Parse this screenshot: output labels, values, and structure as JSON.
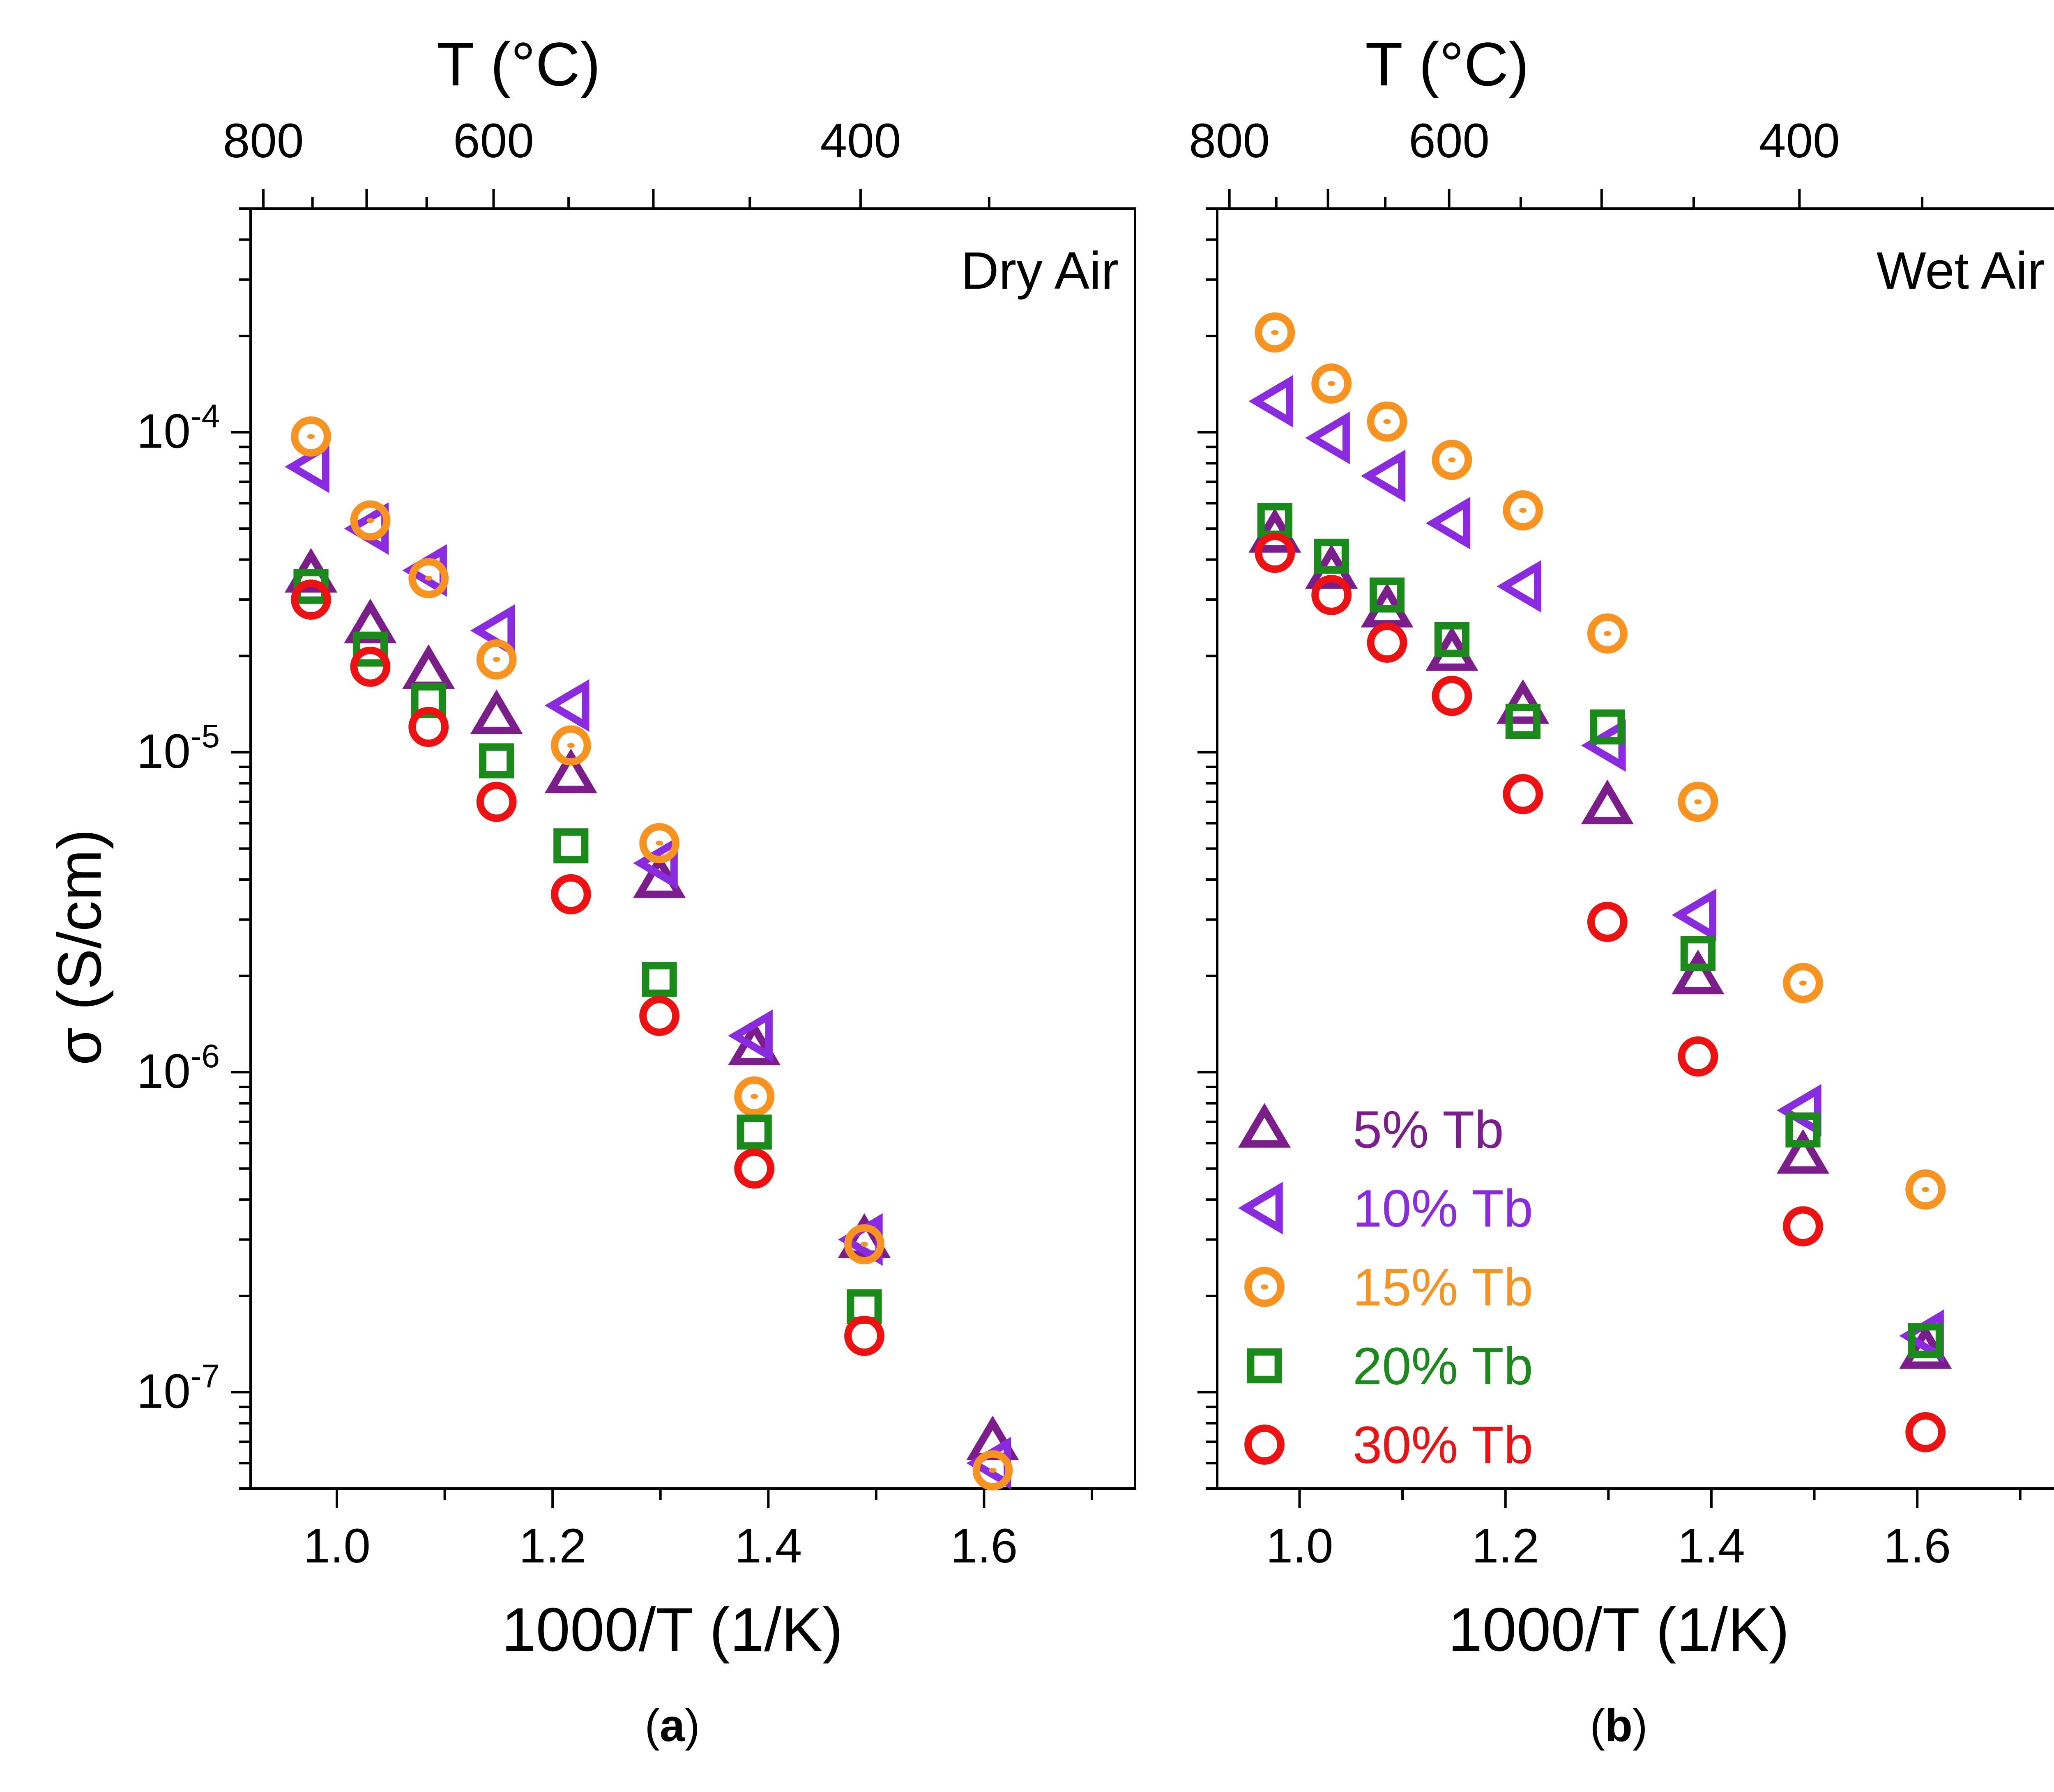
{
  "figure": {
    "colors": {
      "5pct": "#7b1e8c",
      "10pct": "#8a2be2",
      "15pct": "#f7931e",
      "20pct": "#1a8a1a",
      "30pct": "#ee1111"
    }
  },
  "chart_data": [
    {
      "type": "scatter",
      "panel": "(a)",
      "panel_letter": "a",
      "annotation": "Dry Air",
      "xlabel": "1000/T (1/K)",
      "ylabel": "σ (S/cm)",
      "top_xlabel": "T (°C)",
      "xlim": [
        0.92,
        1.74
      ],
      "ylim": [
        5e-08,
        0.0005
      ],
      "yscale": "log",
      "x_ticks": [
        1.0,
        1.2,
        1.4,
        1.6
      ],
      "x_tick_labels": [
        "1.0",
        "1.2",
        "1.4",
        "1.6"
      ],
      "y_ticks": [
        1e-07,
        1e-06,
        1e-05,
        0.0001
      ],
      "y_tick_base": "10",
      "y_tick_exponents": [
        "-7",
        "-6",
        "-5",
        "-4"
      ],
      "top_ticks_celsius": [
        800,
        600,
        400
      ],
      "top_tick_labels": [
        "800",
        "600",
        "400"
      ],
      "series": [
        {
          "name": "5% Tb",
          "marker": "triangle-up",
          "color_key": "5pct",
          "x": [
            0.976,
            1.031,
            1.085,
            1.148,
            1.217,
            1.299,
            1.387,
            1.489,
            1.608
          ],
          "y": [
            3.6e-05,
            2.5e-05,
            1.8e-05,
            1.3e-05,
            8.5e-06,
            4e-06,
            1.2e-06,
            3e-07,
            7e-08
          ]
        },
        {
          "name": "10% Tb",
          "marker": "triangle-left",
          "color_key": "10pct",
          "x": [
            0.976,
            1.031,
            1.085,
            1.148,
            1.217,
            1.299,
            1.387,
            1.489,
            1.608
          ],
          "y": [
            7.8e-05,
            5e-05,
            3.7e-05,
            2.4e-05,
            1.4e-05,
            4.5e-06,
            1.3e-06,
            3e-07,
            6e-08
          ]
        },
        {
          "name": "15% Tb",
          "marker": "circle-dot",
          "color_key": "15pct",
          "x": [
            0.976,
            1.031,
            1.085,
            1.148,
            1.217,
            1.299,
            1.387,
            1.489,
            1.608
          ],
          "y": [
            9.7e-05,
            5.3e-05,
            3.5e-05,
            1.95e-05,
            1.05e-05,
            5.2e-06,
            8.4e-07,
            2.9e-07,
            5.7e-08
          ]
        },
        {
          "name": "20% Tb",
          "marker": "square",
          "color_key": "20pct",
          "x": [
            0.976,
            1.031,
            1.085,
            1.148,
            1.217,
            1.299,
            1.387,
            1.489
          ],
          "y": [
            3.3e-05,
            2.1e-05,
            1.45e-05,
            9.4e-06,
            5.1e-06,
            1.95e-06,
            6.5e-07,
            1.85e-07
          ]
        },
        {
          "name": "30% Tb",
          "marker": "circle",
          "color_key": "30pct",
          "x": [
            0.976,
            1.031,
            1.085,
            1.148,
            1.217,
            1.299,
            1.387,
            1.489
          ],
          "y": [
            3e-05,
            1.85e-05,
            1.2e-05,
            7e-06,
            3.6e-06,
            1.5e-06,
            5e-07,
            1.5e-07
          ]
        }
      ]
    },
    {
      "type": "scatter",
      "panel": "(b)",
      "panel_letter": "b",
      "annotation": "Wet Air",
      "xlabel": "1000/T (1/K)",
      "ylabel": "",
      "top_xlabel": "T (°C)",
      "xlim": [
        0.92,
        1.74
      ],
      "ylim": [
        5e-08,
        0.0005
      ],
      "yscale": "log",
      "x_ticks": [
        1.0,
        1.2,
        1.4,
        1.6
      ],
      "x_tick_labels": [
        "1.0",
        "1.2",
        "1.4",
        "1.6"
      ],
      "y_ticks": [
        1e-07,
        1e-06,
        1e-05,
        0.0001
      ],
      "top_ticks_celsius": [
        800,
        600,
        400
      ],
      "top_tick_labels": [
        "800",
        "600",
        "400"
      ],
      "legend_position": "bottom-left",
      "legend": [
        "5% Tb",
        "10% Tb",
        "15% Tb",
        "20% Tb",
        "30% Tb"
      ],
      "series": [
        {
          "name": "5% Tb",
          "marker": "triangle-up",
          "color_key": "5pct",
          "x": [
            0.976,
            1.031,
            1.085,
            1.148,
            1.217,
            1.299,
            1.387,
            1.489,
            1.608
          ],
          "y": [
            4.8e-05,
            3.7e-05,
            2.8e-05,
            2.05e-05,
            1.4e-05,
            6.8e-06,
            2e-06,
            5.5e-07,
            1.35e-07
          ]
        },
        {
          "name": "10% Tb",
          "marker": "triangle-left",
          "color_key": "10pct",
          "x": [
            0.976,
            1.031,
            1.085,
            1.148,
            1.217,
            1.299,
            1.387,
            1.489,
            1.608
          ],
          "y": [
            0.000125,
            9.6e-05,
            7.3e-05,
            5.2e-05,
            3.3e-05,
            1.05e-05,
            3.1e-06,
            7.6e-07,
            1.5e-07
          ]
        },
        {
          "name": "15% Tb",
          "marker": "circle-dot",
          "color_key": "15pct",
          "x": [
            0.976,
            1.031,
            1.085,
            1.148,
            1.217,
            1.299,
            1.387,
            1.489,
            1.608
          ],
          "y": [
            0.000205,
            0.000142,
            0.000108,
            8.2e-05,
            5.7e-05,
            2.35e-05,
            7e-06,
            1.9e-06,
            4.3e-07
          ]
        },
        {
          "name": "20% Tb",
          "marker": "square",
          "color_key": "20pct",
          "x": [
            0.976,
            1.031,
            1.085,
            1.148,
            1.217,
            1.299,
            1.387,
            1.489,
            1.608
          ],
          "y": [
            5.3e-05,
            4.1e-05,
            3.1e-05,
            2.25e-05,
            1.25e-05,
            1.2e-05,
            2.35e-06,
            6.6e-07,
            1.45e-07
          ]
        },
        {
          "name": "30% Tb",
          "marker": "circle",
          "color_key": "30pct",
          "x": [
            0.976,
            1.031,
            1.085,
            1.148,
            1.217,
            1.299,
            1.387,
            1.489,
            1.608
          ],
          "y": [
            4.2e-05,
            3.1e-05,
            2.2e-05,
            1.5e-05,
            7.4e-06,
            2.95e-06,
            1.12e-06,
            3.3e-07,
            7.5e-08
          ]
        }
      ]
    }
  ]
}
